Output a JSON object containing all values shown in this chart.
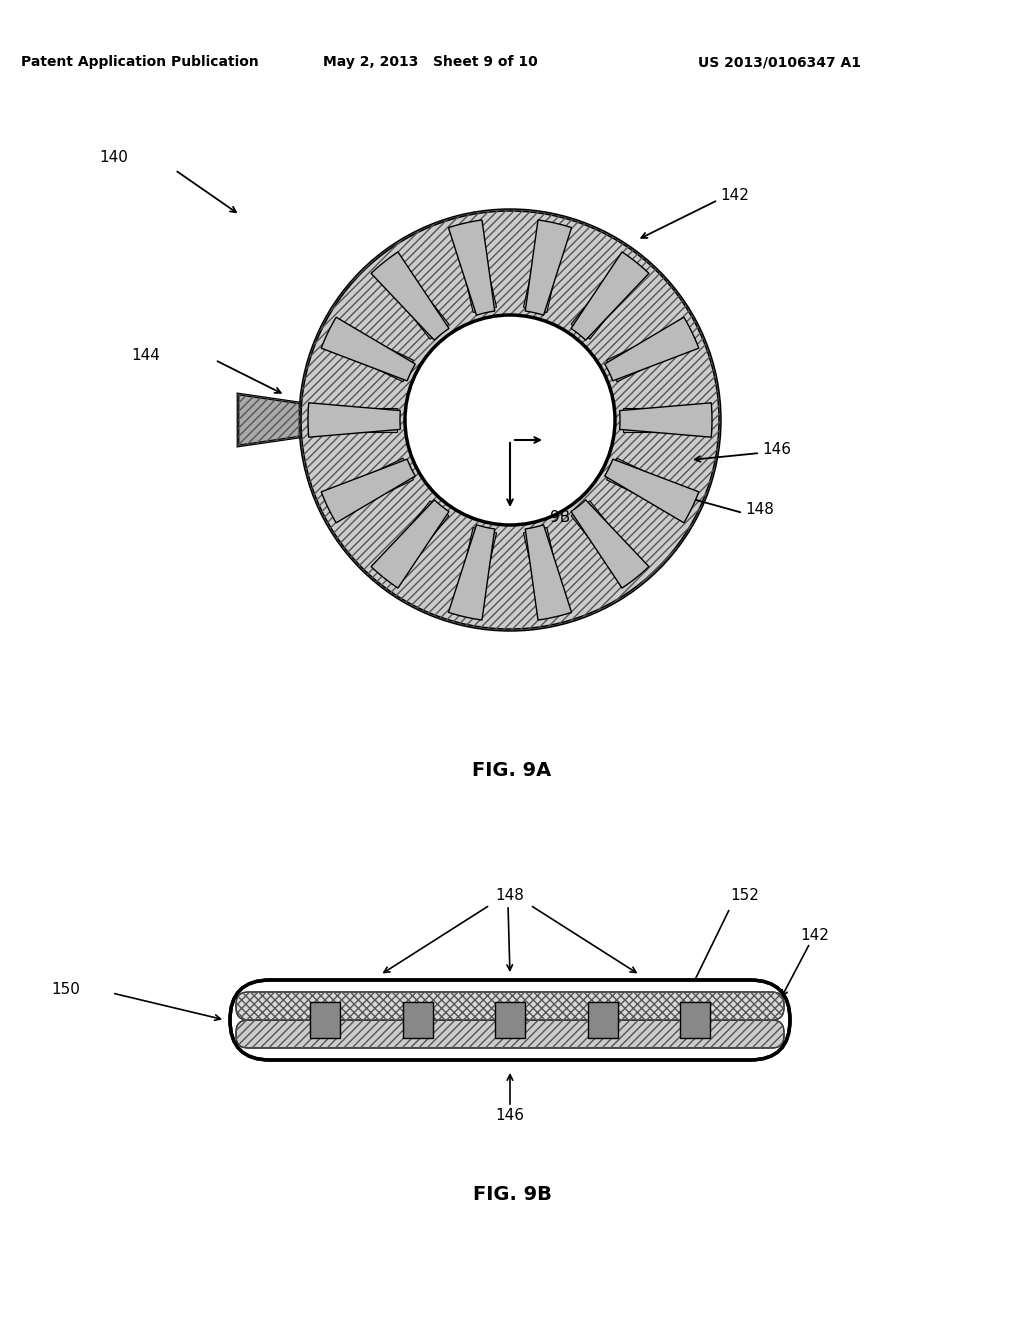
{
  "bg_color": "#ffffff",
  "header_text": "Patent Application Publication",
  "header_date": "May 2, 2013   Sheet 9 of 10",
  "header_patent": "US 2013/0106347 A1",
  "fig9a_label": "FIG. 9A",
  "fig9b_label": "FIG. 9B"
}
